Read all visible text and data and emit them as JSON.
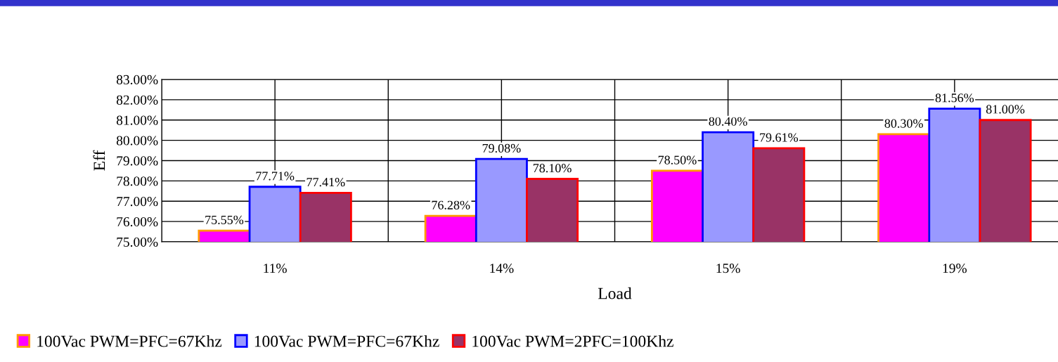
{
  "chart_data": {
    "type": "bar",
    "xlabel": "Load",
    "ylabel": "Eff",
    "categories": [
      "11%",
      "14%",
      "15%",
      "19%"
    ],
    "series": [
      {
        "name": "100Vac PWM=PFC=67Khz",
        "color": "#ff00ff",
        "values": [
          75.55,
          76.28,
          78.5,
          80.3
        ],
        "value_labels": [
          "75.55%",
          "76.28%",
          "78.50%",
          "80.30%"
        ]
      },
      {
        "name": "100Vac PWM=PFC=67Khz",
        "color": "#9999ff",
        "values": [
          77.71,
          79.08,
          80.4,
          81.56
        ],
        "value_labels": [
          "77.71%",
          "79.08%",
          "80.40%",
          "81.56%"
        ]
      },
      {
        "name": "100Vac PWM=2PFC=100Khz",
        "color": "#993366",
        "values": [
          77.41,
          78.1,
          79.61,
          81.0
        ],
        "value_labels": [
          "77.41%",
          "78.10%",
          "79.61%",
          "81.00%"
        ]
      }
    ],
    "ylim": [
      75,
      83
    ],
    "yticks": [
      {
        "value": 75,
        "label": "75.00%"
      },
      {
        "value": 76,
        "label": "76.00%"
      },
      {
        "value": 77,
        "label": "77.00%"
      },
      {
        "value": 78,
        "label": "78.00%"
      },
      {
        "value": 79,
        "label": "79.00%"
      },
      {
        "value": 80,
        "label": "80.00%"
      },
      {
        "value": 81,
        "label": "81.00%"
      },
      {
        "value": 82,
        "label": "82.00%"
      },
      {
        "value": 83,
        "label": "83.00%"
      }
    ],
    "grid": true,
    "legend": "bottom"
  }
}
